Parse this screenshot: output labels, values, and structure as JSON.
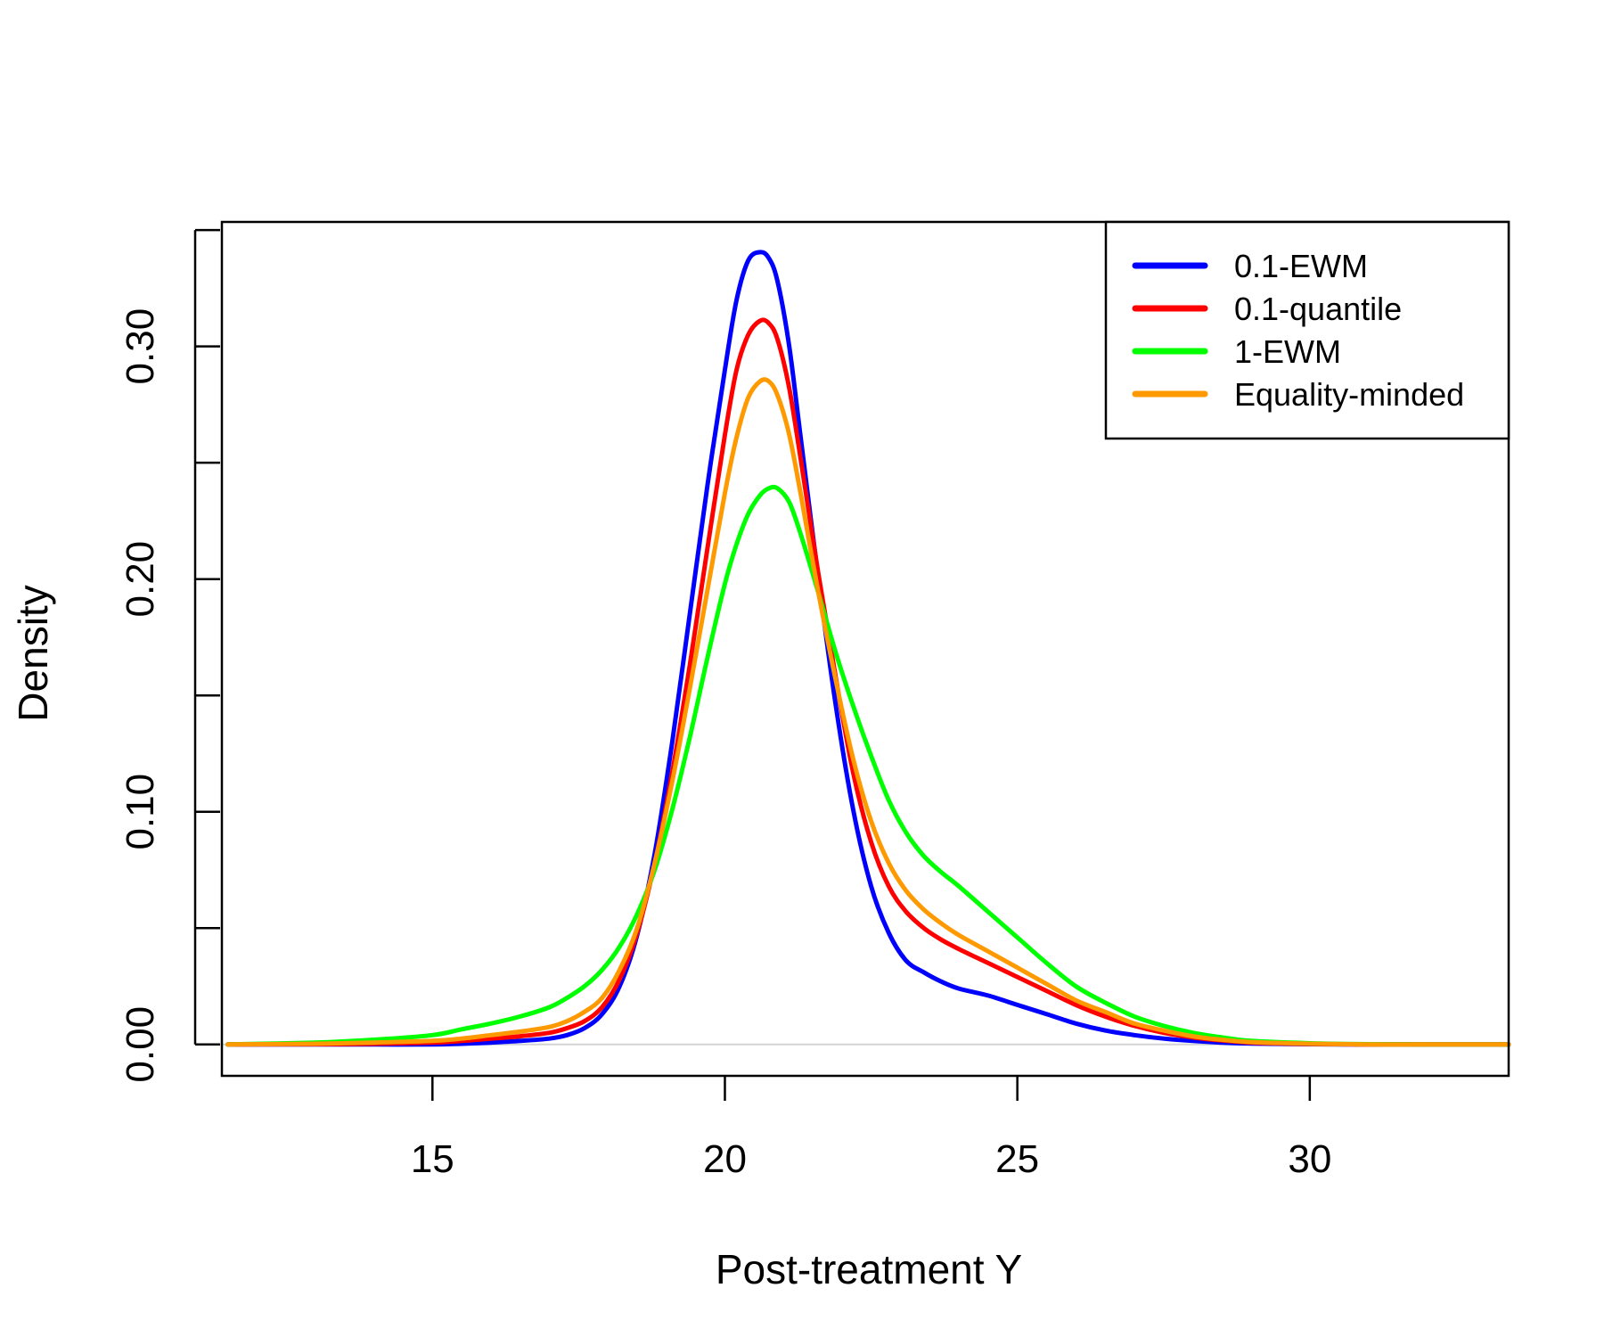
{
  "chart_data": {
    "type": "line",
    "title": "",
    "xlabel": "Post-treatment Y",
    "ylabel": "Density",
    "xlim": [
      11.4,
      33.4
    ],
    "ylim": [
      -0.0135,
      0.3535
    ],
    "xticks": [
      15,
      20,
      25,
      30
    ],
    "xtick_labels": [
      "15",
      "20",
      "25",
      "30"
    ],
    "yticks": [
      0,
      0.05,
      0.1,
      0.15,
      0.2,
      0.25,
      0.3,
      0.35
    ],
    "ytick_labels": [
      "0.00",
      "",
      "0.10",
      "",
      "0.20",
      "",
      "0.30",
      ""
    ],
    "baseline": 0,
    "legend_position": "top-right",
    "grid": false,
    "series": [
      {
        "name": "0.1-EWM",
        "color": "#0000FF",
        "x": [
          11.5,
          13,
          14,
          15,
          15.5,
          16,
          16.5,
          17,
          17.3,
          17.6,
          17.9,
          18.2,
          18.5,
          18.8,
          19.1,
          19.4,
          19.7,
          20.0,
          20.2,
          20.4,
          20.6,
          20.75,
          20.9,
          21.1,
          21.3,
          21.6,
          21.9,
          22.2,
          22.5,
          22.8,
          23.1,
          23.4,
          23.7,
          24.0,
          24.5,
          25.0,
          25.5,
          26.0,
          26.5,
          27.0,
          27.5,
          28.0,
          28.5,
          29.0,
          30.0,
          31.0,
          32.0,
          33.4
        ],
        "y": [
          0,
          0,
          0,
          0,
          0.0003,
          0.0008,
          0.0015,
          0.0025,
          0.004,
          0.007,
          0.013,
          0.025,
          0.047,
          0.082,
          0.13,
          0.185,
          0.24,
          0.29,
          0.32,
          0.337,
          0.3405,
          0.338,
          0.328,
          0.3,
          0.26,
          0.2,
          0.145,
          0.1,
          0.068,
          0.048,
          0.036,
          0.031,
          0.027,
          0.024,
          0.021,
          0.017,
          0.013,
          0.009,
          0.006,
          0.004,
          0.0025,
          0.0015,
          0.0008,
          0.0004,
          0.0001,
          0,
          0,
          0
        ]
      },
      {
        "name": "0.1-quantile",
        "color": "#FF0000",
        "x": [
          11.5,
          13,
          14,
          15,
          15.5,
          16,
          16.5,
          17,
          17.3,
          17.6,
          17.9,
          18.2,
          18.5,
          18.8,
          19.1,
          19.4,
          19.7,
          20.0,
          20.2,
          20.4,
          20.6,
          20.75,
          20.9,
          21.1,
          21.3,
          21.6,
          21.9,
          22.2,
          22.5,
          22.8,
          23.1,
          23.4,
          23.7,
          24.0,
          24.5,
          25.0,
          25.5,
          26.0,
          26.5,
          27.0,
          27.5,
          28.0,
          28.5,
          29.0,
          30.0,
          31.0,
          32.0,
          33.4
        ],
        "y": [
          0,
          0.0001,
          0.0003,
          0.0008,
          0.0015,
          0.0025,
          0.0035,
          0.005,
          0.007,
          0.01,
          0.016,
          0.028,
          0.048,
          0.078,
          0.117,
          0.163,
          0.213,
          0.262,
          0.29,
          0.305,
          0.311,
          0.31,
          0.303,
          0.282,
          0.251,
          0.202,
          0.157,
          0.116,
          0.087,
          0.068,
          0.057,
          0.05,
          0.045,
          0.041,
          0.035,
          0.029,
          0.023,
          0.017,
          0.012,
          0.008,
          0.005,
          0.003,
          0.0017,
          0.0008,
          0.0002,
          0,
          0,
          0
        ]
      },
      {
        "name": "1-EWM",
        "color": "#00FF00",
        "x": [
          11.5,
          13,
          14,
          15,
          15.5,
          16,
          16.5,
          17,
          17.3,
          17.6,
          17.9,
          18.2,
          18.5,
          18.8,
          19.1,
          19.4,
          19.7,
          20.0,
          20.2,
          20.4,
          20.6,
          20.75,
          20.9,
          21.1,
          21.3,
          21.6,
          21.9,
          22.2,
          22.5,
          22.8,
          23.1,
          23.4,
          23.7,
          24.0,
          24.5,
          25.0,
          25.5,
          26.0,
          26.5,
          27.0,
          27.5,
          28.0,
          28.5,
          29.0,
          30.0,
          31.0,
          32.0,
          33.4
        ],
        "y": [
          0,
          0.0008,
          0.002,
          0.004,
          0.0065,
          0.009,
          0.012,
          0.016,
          0.02,
          0.025,
          0.032,
          0.042,
          0.056,
          0.075,
          0.101,
          0.132,
          0.166,
          0.198,
          0.215,
          0.228,
          0.236,
          0.239,
          0.239,
          0.233,
          0.219,
          0.194,
          0.168,
          0.145,
          0.124,
          0.105,
          0.091,
          0.081,
          0.074,
          0.068,
          0.057,
          0.046,
          0.035,
          0.025,
          0.018,
          0.012,
          0.008,
          0.005,
          0.003,
          0.0015,
          0.0005,
          0.0001,
          0,
          0
        ]
      },
      {
        "name": "Equality-minded",
        "color": "#FF9900",
        "x": [
          11.5,
          13,
          14,
          15,
          15.5,
          16,
          16.5,
          17,
          17.3,
          17.6,
          17.9,
          18.2,
          18.5,
          18.8,
          19.1,
          19.4,
          19.7,
          20.0,
          20.2,
          20.4,
          20.6,
          20.75,
          20.9,
          21.1,
          21.3,
          21.6,
          21.9,
          22.2,
          22.5,
          22.8,
          23.1,
          23.4,
          23.7,
          24.0,
          24.5,
          25.0,
          25.5,
          26.0,
          26.5,
          27.0,
          27.5,
          28.0,
          28.5,
          29.0,
          30.0,
          31.0,
          32.0,
          33.4
        ],
        "y": [
          0,
          0.0003,
          0.0008,
          0.0015,
          0.0025,
          0.004,
          0.0055,
          0.0075,
          0.01,
          0.014,
          0.02,
          0.032,
          0.05,
          0.078,
          0.113,
          0.153,
          0.195,
          0.237,
          0.261,
          0.278,
          0.285,
          0.285,
          0.279,
          0.262,
          0.236,
          0.194,
          0.156,
          0.122,
          0.096,
          0.078,
          0.066,
          0.058,
          0.052,
          0.047,
          0.04,
          0.033,
          0.026,
          0.019,
          0.014,
          0.009,
          0.006,
          0.0035,
          0.002,
          0.001,
          0.0003,
          0,
          0,
          0
        ]
      }
    ]
  }
}
